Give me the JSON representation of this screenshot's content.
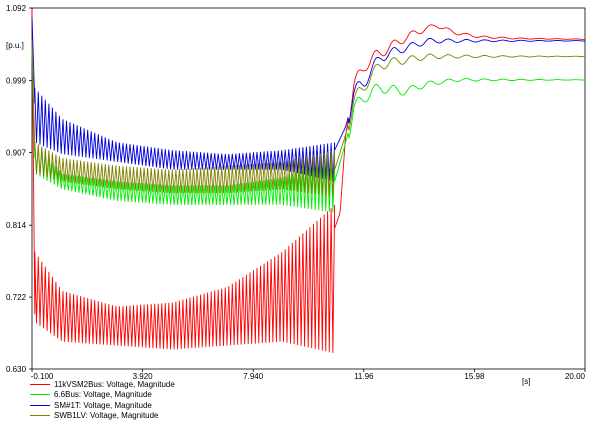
{
  "chart_data": {
    "type": "line",
    "unit_label": "[p.u.]",
    "x_unit_label": "[s]",
    "xlim": [
      -0.1,
      20.0
    ],
    "ylim": [
      0.63,
      1.092
    ],
    "x_ticks": [
      "-0.100",
      "3.920",
      "7.940",
      "11.96",
      "15.98",
      "20.00"
    ],
    "y_ticks": [
      "0.630",
      "0.722",
      "0.814",
      "0.907",
      "0.999",
      "1.092"
    ],
    "grid": false,
    "legend_position": "bottom-left",
    "series": [
      {
        "name": "11kVSM2Bus: Voltage, Magnitude",
        "color": "#ff0000",
        "envelope_points": [
          [
            -0.1,
            1.09
          ],
          [
            0.0,
            0.7
          ],
          [
            1,
            0.68
          ],
          [
            3,
            0.665
          ],
          [
            5,
            0.66
          ],
          [
            7,
            0.665
          ],
          [
            9,
            0.69
          ],
          [
            10,
            0.74
          ],
          [
            10.9,
            0.81
          ],
          [
            11.1,
            0.83
          ],
          [
            11.3,
            0.93
          ],
          [
            11.6,
            0.99
          ],
          [
            12.0,
            1.02
          ],
          [
            12.8,
            1.04
          ],
          [
            13.8,
            1.06
          ],
          [
            14.6,
            1.07
          ],
          [
            15.3,
            1.06
          ],
          [
            16.2,
            1.055
          ],
          [
            17.5,
            1.053
          ],
          [
            20.0,
            1.052
          ]
        ],
        "oscillation_band": [
          [
            0.0,
            0.78,
            0.69
          ],
          [
            1,
            0.73,
            0.665
          ],
          [
            3,
            0.71,
            0.66
          ],
          [
            5,
            0.715,
            0.655
          ],
          [
            7,
            0.735,
            0.66
          ],
          [
            9,
            0.78,
            0.665
          ],
          [
            10.9,
            0.84,
            0.65
          ]
        ]
      },
      {
        "name": "6.6Bus: Voltage, Magnitude",
        "color": "#00ee00",
        "envelope_points": [
          [
            -0.1,
            1.04
          ],
          [
            0.0,
            0.9
          ],
          [
            1,
            0.87
          ],
          [
            3,
            0.855
          ],
          [
            5,
            0.85
          ],
          [
            7,
            0.85
          ],
          [
            9,
            0.855
          ],
          [
            10.9,
            0.87
          ],
          [
            11.3,
            0.92
          ],
          [
            11.6,
            0.96
          ],
          [
            12.0,
            0.98
          ],
          [
            12.6,
            0.99
          ],
          [
            13.4,
            0.985
          ],
          [
            14.3,
            0.995
          ],
          [
            15.3,
            1.0
          ],
          [
            16.5,
            1.0
          ],
          [
            18,
            1.0
          ],
          [
            20.0,
            1.0
          ]
        ],
        "oscillation_band": [
          [
            0.0,
            0.92,
            0.88
          ],
          [
            1,
            0.88,
            0.86
          ],
          [
            3,
            0.87,
            0.845
          ],
          [
            5,
            0.865,
            0.84
          ],
          [
            7,
            0.865,
            0.84
          ],
          [
            9,
            0.875,
            0.84
          ],
          [
            10.9,
            0.9,
            0.83
          ]
        ]
      },
      {
        "name": "SM#1T: Voltage, Magnitude",
        "color": "#0000dd",
        "envelope_points": [
          [
            -0.1,
            1.08
          ],
          [
            0.0,
            0.97
          ],
          [
            1,
            0.93
          ],
          [
            3,
            0.905
          ],
          [
            5,
            0.895
          ],
          [
            7,
            0.895
          ],
          [
            9,
            0.9
          ],
          [
            10.9,
            0.91
          ],
          [
            11.3,
            0.94
          ],
          [
            11.6,
            0.98
          ],
          [
            12.0,
            1.0
          ],
          [
            12.6,
            1.03
          ],
          [
            13.4,
            1.04
          ],
          [
            14.3,
            1.05
          ],
          [
            15.3,
            1.05
          ],
          [
            16.5,
            1.05
          ],
          [
            18,
            1.05
          ],
          [
            20.0,
            1.05
          ]
        ],
        "oscillation_band": [
          [
            0.0,
            0.99,
            0.92
          ],
          [
            1,
            0.95,
            0.905
          ],
          [
            3,
            0.92,
            0.895
          ],
          [
            5,
            0.91,
            0.885
          ],
          [
            7,
            0.905,
            0.885
          ],
          [
            9,
            0.91,
            0.885
          ],
          [
            10.9,
            0.92,
            0.87
          ]
        ]
      },
      {
        "name": "SWB1LV: Voltage, Magnitude",
        "color": "#808000",
        "envelope_points": [
          [
            -0.1,
            1.05
          ],
          [
            0.0,
            0.91
          ],
          [
            1,
            0.885
          ],
          [
            3,
            0.875
          ],
          [
            5,
            0.87
          ],
          [
            7,
            0.87
          ],
          [
            9,
            0.875
          ],
          [
            10.9,
            0.885
          ],
          [
            11.3,
            0.93
          ],
          [
            11.6,
            0.97
          ],
          [
            12.0,
            0.995
          ],
          [
            12.6,
            1.02
          ],
          [
            13.4,
            1.025
          ],
          [
            14.3,
            1.03
          ],
          [
            15.3,
            1.03
          ],
          [
            16.5,
            1.03
          ],
          [
            18,
            1.03
          ],
          [
            20.0,
            1.03
          ]
        ],
        "oscillation_band": [
          [
            0.0,
            0.92,
            0.88
          ],
          [
            1,
            0.9,
            0.87
          ],
          [
            3,
            0.89,
            0.86
          ],
          [
            5,
            0.885,
            0.855
          ],
          [
            7,
            0.89,
            0.855
          ],
          [
            9,
            0.895,
            0.86
          ],
          [
            10.9,
            0.91,
            0.85
          ]
        ]
      }
    ]
  }
}
